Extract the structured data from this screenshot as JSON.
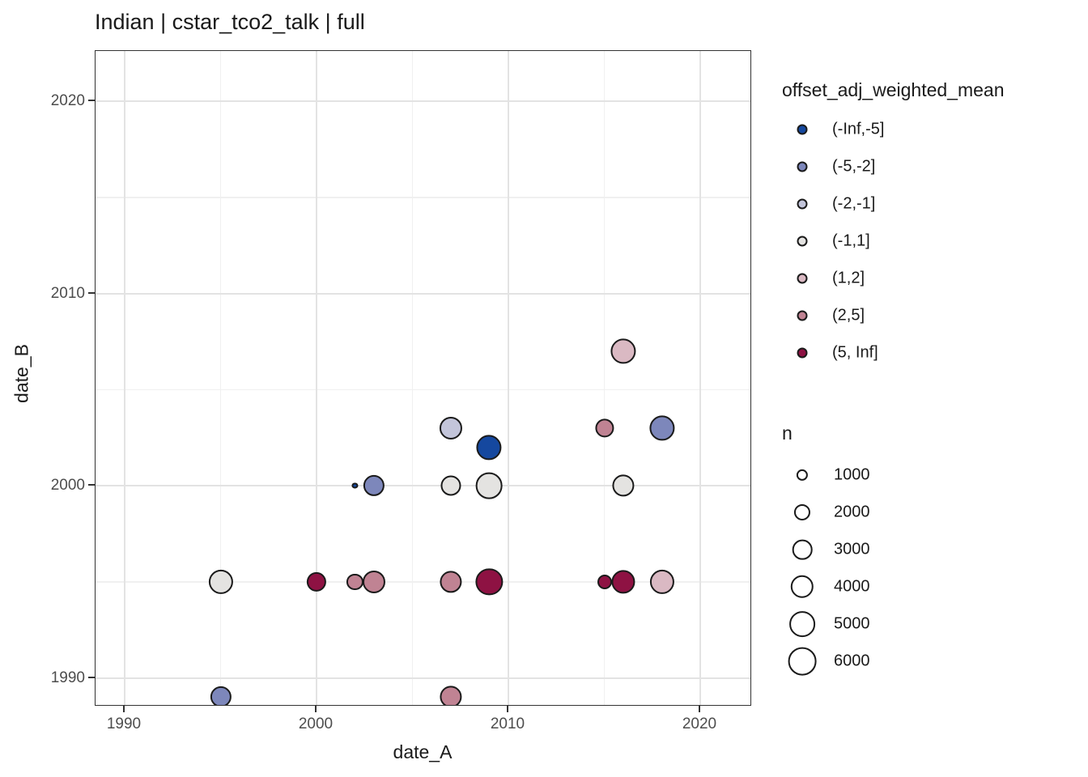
{
  "title": "Indian | cstar_tco2_talk | full",
  "chart_data": {
    "type": "scatter",
    "title": "Indian | cstar_tco2_talk | full",
    "xlabel": "date_A",
    "ylabel": "date_B",
    "xlim": [
      1988.5,
      2022.8
    ],
    "ylim": [
      1988.5,
      2022.6
    ],
    "x_major_ticks": [
      1990,
      2000,
      2010,
      2020
    ],
    "y_major_ticks": [
      1990,
      2000,
      2010,
      2020
    ],
    "x_tick_labels": [
      "1990",
      "2000",
      "2010",
      "2020"
    ],
    "y_tick_labels": [
      "1990",
      "2000",
      "2010",
      "2020"
    ],
    "x_minor_gridlines": [
      1995,
      2005,
      2015
    ],
    "y_minor_gridlines": [
      1995,
      2005,
      2015
    ],
    "grid": true,
    "legend_position": "right",
    "color_legend": {
      "title": "offset_adj_weighted_mean",
      "bins": [
        {
          "label": "(-Inf,-5]",
          "color": "#15489F"
        },
        {
          "label": "(-5,-2]",
          "color": "#7D87BB"
        },
        {
          "label": "(-2,-1]",
          "color": "#C3C5DA"
        },
        {
          "label": "(-1,1]",
          "color": "#E4E3E1"
        },
        {
          "label": "(1,2]",
          "color": "#DAB9C3"
        },
        {
          "label": "(2,5]",
          "color": "#C08393"
        },
        {
          "label": "(5, Inf]",
          "color": "#8E1243"
        }
      ]
    },
    "size_legend": {
      "title": "n",
      "values": [
        1000,
        2000,
        3000,
        4000,
        5000,
        6000
      ],
      "labels": [
        "1000",
        "2000",
        "3000",
        "4000",
        "5000",
        "6000"
      ]
    },
    "points": [
      {
        "date_A": 1995,
        "date_B": 1989,
        "bin": "(-5,-2]",
        "n": 3400
      },
      {
        "date_A": 1995,
        "date_B": 1995,
        "bin": "(-1,1]",
        "n": 4500
      },
      {
        "date_A": 2000,
        "date_B": 1995,
        "bin": "(5, Inf]",
        "n": 2900
      },
      {
        "date_A": 2002,
        "date_B": 1995,
        "bin": "(2,5]",
        "n": 2000
      },
      {
        "date_A": 2003,
        "date_B": 1995,
        "bin": "(2,5]",
        "n": 3900
      },
      {
        "date_A": 2002,
        "date_B": 2000,
        "bin": "(-Inf,-5]",
        "n": 250
      },
      {
        "date_A": 2003,
        "date_B": 2000,
        "bin": "(-5,-2]",
        "n": 3400
      },
      {
        "date_A": 2007,
        "date_B": 2003,
        "bin": "(-2,-1]",
        "n": 3900
      },
      {
        "date_A": 2007,
        "date_B": 2000,
        "bin": "(-1,1]",
        "n": 3100
      },
      {
        "date_A": 2007,
        "date_B": 1995,
        "bin": "(2,5]",
        "n": 3650
      },
      {
        "date_A": 2007,
        "date_B": 1989,
        "bin": "(2,5]",
        "n": 3650
      },
      {
        "date_A": 2009,
        "date_B": 2002,
        "bin": "(-Inf,-5]",
        "n": 4800
      },
      {
        "date_A": 2009,
        "date_B": 2000,
        "bin": "(-1,1]",
        "n": 5300
      },
      {
        "date_A": 2009,
        "date_B": 1995,
        "bin": "(5, Inf]",
        "n": 5450
      },
      {
        "date_A": 2015,
        "date_B": 2003,
        "bin": "(2,5]",
        "n": 2650
      },
      {
        "date_A": 2015,
        "date_B": 1995,
        "bin": "(5, Inf]",
        "n": 1600
      },
      {
        "date_A": 2016,
        "date_B": 1995,
        "bin": "(5, Inf]",
        "n": 4200
      },
      {
        "date_A": 2016,
        "date_B": 2000,
        "bin": "(-1,1]",
        "n": 3650
      },
      {
        "date_A": 2016,
        "date_B": 2007,
        "bin": "(1,2]",
        "n": 4800
      },
      {
        "date_A": 2018,
        "date_B": 2003,
        "bin": "(-5,-2]",
        "n": 4800
      },
      {
        "date_A": 2018,
        "date_B": 1995,
        "bin": "(1,2]",
        "n": 4500
      }
    ]
  }
}
